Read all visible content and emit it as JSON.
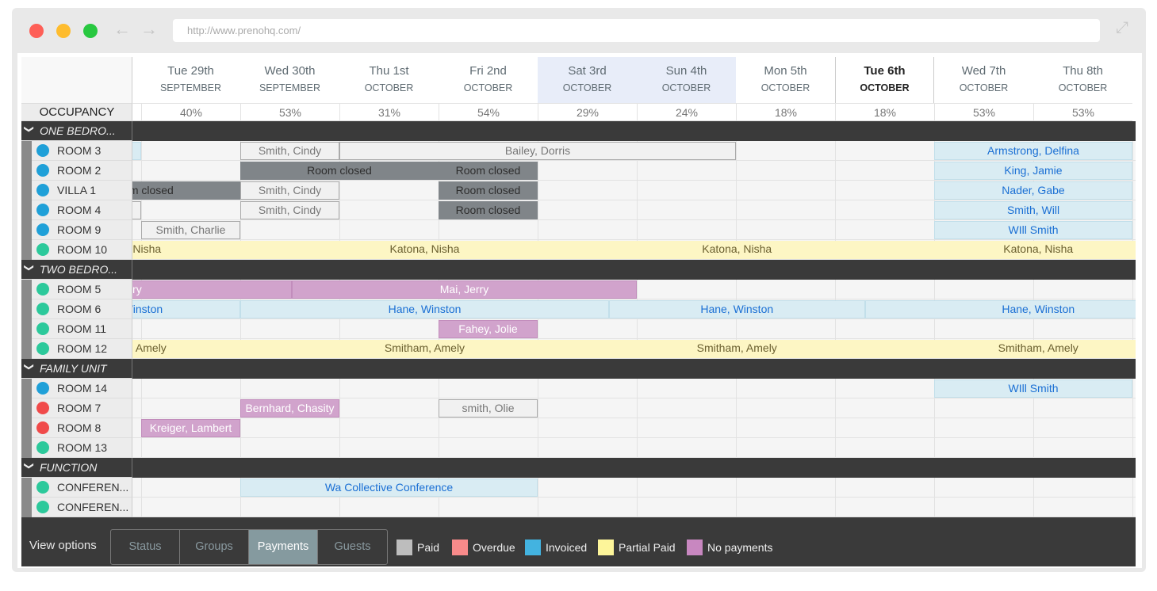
{
  "browser": {
    "url": "http://www.prenohq.com/",
    "traffic_colors": [
      "#fe5f57",
      "#febc2e",
      "#28c840"
    ]
  },
  "days": [
    {
      "day": "Tue 29th",
      "month": "SEPTEMBER",
      "occ": "40%"
    },
    {
      "day": "Wed 30th",
      "month": "SEPTEMBER",
      "occ": "53%"
    },
    {
      "day": "Thu 1st",
      "month": "OCTOBER",
      "occ": "31%"
    },
    {
      "day": "Fri 2nd",
      "month": "OCTOBER",
      "occ": "54%"
    },
    {
      "day": "Sat 3rd",
      "month": "OCTOBER",
      "occ": "29%",
      "weekend": true
    },
    {
      "day": "Sun 4th",
      "month": "OCTOBER",
      "occ": "24%",
      "weekend": true
    },
    {
      "day": "Mon 5th",
      "month": "OCTOBER",
      "occ": "18%"
    },
    {
      "day": "Tue 6th",
      "month": "OCTOBER",
      "occ": "18%",
      "today": true
    },
    {
      "day": "Wed 7th",
      "month": "OCTOBER",
      "occ": "53%"
    },
    {
      "day": "Thu 8th",
      "month": "OCTOBER",
      "occ": "53%"
    }
  ],
  "occupancy_label": "OCCUPANCY",
  "status_colors": {
    "blue": "#1fa0d8",
    "green": "#2cc99b",
    "red": "#f04a4a"
  },
  "rows": [
    {
      "group": "ONE BEDRO..."
    },
    {
      "room": "ROOM 3",
      "status": "blue",
      "bookings": [
        {
          "s": -1,
          "n": 1,
          "t": "invoiced",
          "g": ""
        },
        {
          "s": 1,
          "n": 1,
          "t": "paid",
          "g": "Smith, Cindy"
        },
        {
          "s": 2,
          "n": 4,
          "t": "paid",
          "g": "Bailey, Dorris"
        },
        {
          "s": 8,
          "n": 2,
          "t": "invoiced",
          "g": "Armstrong, Delfina"
        }
      ]
    },
    {
      "room": "ROOM 2",
      "status": "blue",
      "bookings": [
        {
          "s": 1,
          "n": 2,
          "t": "closed",
          "g": "Room closed"
        },
        {
          "s": 3,
          "n": 1,
          "t": "closed",
          "g": "Room closed"
        },
        {
          "s": 8,
          "n": 2,
          "t": "invoiced",
          "g": "King, Jamie"
        }
      ]
    },
    {
      "room": "VILLA 1",
      "status": "blue",
      "bookings": [
        {
          "s": -1,
          "n": 2,
          "t": "closed",
          "g": "Room closed"
        },
        {
          "s": 1,
          "n": 1,
          "t": "paid",
          "g": "Smith, Cindy"
        },
        {
          "s": 3,
          "n": 1,
          "t": "closed",
          "g": "Room closed"
        },
        {
          "s": 8,
          "n": 2,
          "t": "invoiced",
          "g": "Nader, Gabe"
        }
      ]
    },
    {
      "room": "ROOM 4",
      "status": "blue",
      "bookings": [
        {
          "s": -1,
          "n": 1,
          "t": "paid",
          "g": ""
        },
        {
          "s": 1,
          "n": 1,
          "t": "paid",
          "g": "Smith, Cindy"
        },
        {
          "s": 3,
          "n": 1,
          "t": "closed",
          "g": "Room closed"
        },
        {
          "s": 8,
          "n": 2,
          "t": "invoiced",
          "g": "Smith, Will"
        }
      ]
    },
    {
      "room": "ROOM 9",
      "status": "blue",
      "bookings": [
        {
          "s": 0,
          "n": 1,
          "t": "paid",
          "g": "Smith, Charlie"
        },
        {
          "s": 8,
          "n": 2,
          "t": "invoiced",
          "g": "WIll Smith"
        }
      ]
    },
    {
      "room": "ROOM 10",
      "status": "green",
      "bookings": [
        {
          "s": -1.3,
          "n": 2.3,
          "t": "partial",
          "g": "Katona, Nisha"
        },
        {
          "s": 1,
          "n": 3.72,
          "t": "partial",
          "g": "Katona, Nisha"
        },
        {
          "s": 4.72,
          "n": 2.58,
          "t": "partial",
          "g": "Katona, Nisha"
        },
        {
          "s": 7.3,
          "n": 3.5,
          "t": "partial",
          "g": "Katona, Nisha"
        }
      ]
    },
    {
      "group": "TWO BEDRO..."
    },
    {
      "room": "ROOM 5",
      "status": "green",
      "bookings": [
        {
          "s": -2,
          "n": 3.52,
          "t": "nopay",
          "g": "Mai, Jerry",
          "seam": true
        },
        {
          "s": 1.52,
          "n": 3.48,
          "t": "nopay",
          "g": "Mai, Jerry"
        }
      ]
    },
    {
      "room": "ROOM 6",
      "status": "green",
      "bookings": [
        {
          "s": -1.3,
          "n": 2.3,
          "t": "invoiced",
          "g": "Hane, Winston"
        },
        {
          "s": 1,
          "n": 3.72,
          "t": "invoiced",
          "g": "Hane, Winston"
        },
        {
          "s": 4.72,
          "n": 2.58,
          "t": "invoiced",
          "g": "Hane, Winston"
        },
        {
          "s": 7.3,
          "n": 3.5,
          "t": "invoiced",
          "g": "Hane, Winston"
        }
      ]
    },
    {
      "room": "ROOM 11",
      "status": "green",
      "bookings": [
        {
          "s": 3,
          "n": 1,
          "t": "nopay",
          "g": "Fahey, Jolie"
        }
      ]
    },
    {
      "room": "ROOM 12",
      "status": "green",
      "bookings": [
        {
          "s": -1.3,
          "n": 2.3,
          "t": "partial",
          "g": "Smitham, Amely"
        },
        {
          "s": 1,
          "n": 3.72,
          "t": "partial",
          "g": "Smitham, Amely"
        },
        {
          "s": 4.72,
          "n": 2.58,
          "t": "partial",
          "g": "Smitham, Amely"
        },
        {
          "s": 7.3,
          "n": 3.5,
          "t": "partial",
          "g": "Smitham, Amely"
        }
      ]
    },
    {
      "group": "FAMILY UNIT"
    },
    {
      "room": "ROOM 14",
      "status": "blue",
      "bookings": [
        {
          "s": 8,
          "n": 2,
          "t": "invoiced",
          "g": "WIll Smith"
        }
      ]
    },
    {
      "room": "ROOM 7",
      "status": "red",
      "bookings": [
        {
          "s": 1,
          "n": 1,
          "t": "nopay",
          "g": "Bernhard, Chasity"
        },
        {
          "s": 3,
          "n": 1,
          "t": "paid",
          "g": "smith, Olie"
        }
      ]
    },
    {
      "room": "ROOM 8",
      "status": "red",
      "bookings": [
        {
          "s": 0,
          "n": 1,
          "t": "nopay",
          "g": "Kreiger, Lambert"
        }
      ]
    },
    {
      "room": "ROOM 13",
      "status": "green",
      "bookings": []
    },
    {
      "group": "FUNCTION"
    },
    {
      "room": "CONFEREN...",
      "status": "green",
      "bookings": [
        {
          "s": 1,
          "n": 3,
          "t": "invoiced",
          "g": "Wa Collective Conference"
        }
      ]
    },
    {
      "room": "CONFEREN...",
      "status": "green",
      "bookings": []
    }
  ],
  "footer": {
    "view_options_label": "View options",
    "tabs": [
      {
        "label": "Status"
      },
      {
        "label": "Groups"
      },
      {
        "label": "Payments",
        "active": true
      },
      {
        "label": "Guests"
      }
    ],
    "legend": [
      {
        "label": "Paid",
        "color": "#bdbdbd"
      },
      {
        "label": "Overdue",
        "color": "#f88a8a"
      },
      {
        "label": "Invoiced",
        "color": "#43b3e0"
      },
      {
        "label": "Partial Paid",
        "color": "#fdf59a"
      },
      {
        "label": "No payments",
        "color": "#c887c0"
      }
    ]
  }
}
